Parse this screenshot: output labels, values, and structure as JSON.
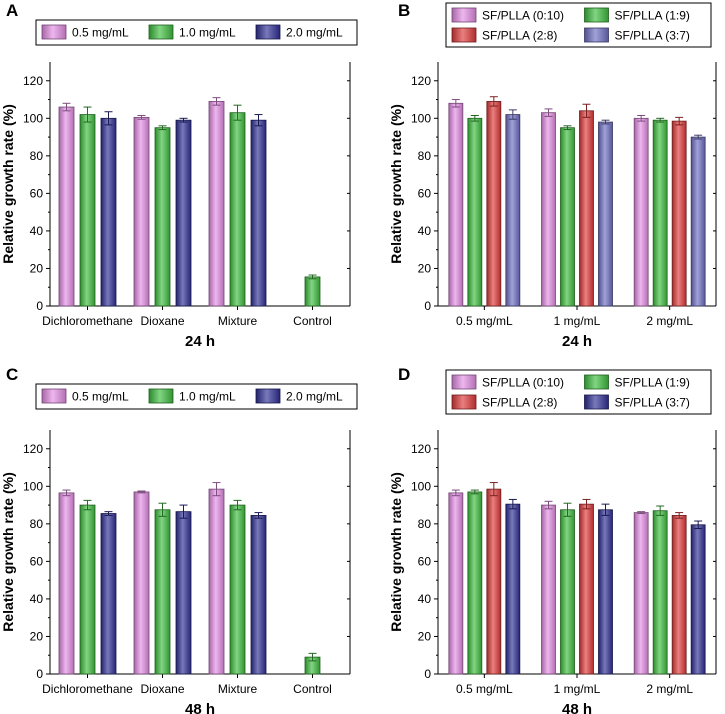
{
  "chart_data": [
    {
      "panel": "A",
      "type": "bar",
      "title": "",
      "xlabel": "24 h",
      "ylabel": "Relative growth rate (%)",
      "ylim": [
        0,
        130
      ],
      "yticks": [
        0,
        20,
        40,
        60,
        80,
        100,
        120
      ],
      "categories": [
        "Dichloromethane",
        "Dioxane",
        "Mixture",
        "Control"
      ],
      "legend_position": "top",
      "series": [
        {
          "name": "0.5 mg/mL",
          "color": "#e58ee6",
          "values": [
            106,
            100.5,
            109,
            null
          ],
          "errors": [
            2,
            1,
            2,
            null
          ]
        },
        {
          "name": "1.0 mg/mL",
          "color": "#3fbf3f",
          "values": [
            102,
            95,
            103,
            15.5
          ],
          "errors": [
            4,
            1,
            4,
            1
          ]
        },
        {
          "name": "2.0 mg/mL",
          "color": "#2f2f96",
          "values": [
            100,
            99,
            99,
            null
          ],
          "errors": [
            3.5,
            1,
            3,
            null
          ]
        }
      ]
    },
    {
      "panel": "B",
      "type": "bar",
      "title": "",
      "xlabel": "24 h",
      "ylabel": "Relative growth rate (%)",
      "ylim": [
        0,
        130
      ],
      "yticks": [
        0,
        20,
        40,
        60,
        80,
        100,
        120
      ],
      "categories": [
        "0.5 mg/mL",
        "1 mg/mL",
        "2 mg/mL"
      ],
      "legend_position": "top",
      "series": [
        {
          "name": "SF/PLLA (0:10)",
          "color": "#e58ee6",
          "values": [
            108,
            103,
            100
          ],
          "errors": [
            2,
            2,
            1.5
          ]
        },
        {
          "name": "SF/PLLA (1:9)",
          "color": "#3fbf3f",
          "values": [
            100,
            95,
            99
          ],
          "errors": [
            1.5,
            1,
            1
          ]
        },
        {
          "name": "SF/PLLA (2:8)",
          "color": "#e03a3a",
          "values": [
            109,
            104,
            98.5
          ],
          "errors": [
            2.5,
            3.5,
            2
          ]
        },
        {
          "name": "SF/PLLA (3:7)",
          "color": "#6f6fc4",
          "values": [
            102,
            98,
            90
          ],
          "errors": [
            2.5,
            1,
            1
          ]
        }
      ]
    },
    {
      "panel": "C",
      "type": "bar",
      "title": "",
      "xlabel": "48 h",
      "ylabel": "Relative growth rate (%)",
      "ylim": [
        0,
        130
      ],
      "yticks": [
        0,
        20,
        40,
        60,
        80,
        100,
        120
      ],
      "categories": [
        "Dichloromethane",
        "Dioxane",
        "Mixture",
        "Control"
      ],
      "legend_position": "top",
      "series": [
        {
          "name": "0.5 mg/mL",
          "color": "#e58ee6",
          "values": [
            96.5,
            97,
            98.5,
            null
          ],
          "errors": [
            1.5,
            0.5,
            3.5,
            null
          ]
        },
        {
          "name": "1.0 mg/mL",
          "color": "#3fbf3f",
          "values": [
            90,
            87.5,
            90,
            9
          ],
          "errors": [
            2.5,
            3.5,
            2.5,
            2
          ]
        },
        {
          "name": "2.0 mg/mL",
          "color": "#2f2f96",
          "values": [
            85.5,
            86.5,
            84.5,
            null
          ],
          "errors": [
            1,
            3.5,
            1.5,
            null
          ]
        }
      ]
    },
    {
      "panel": "D",
      "type": "bar",
      "title": "",
      "xlabel": "48 h",
      "ylabel": "Relative growth rate (%)",
      "ylim": [
        0,
        130
      ],
      "yticks": [
        0,
        20,
        40,
        60,
        80,
        100,
        120
      ],
      "categories": [
        "0.5 mg/mL",
        "1 mg/mL",
        "2 mg/mL"
      ],
      "legend_position": "top",
      "series": [
        {
          "name": "SF/PLLA (0:10)",
          "color": "#e58ee6",
          "values": [
            96.5,
            90,
            86
          ],
          "errors": [
            1.5,
            2,
            0.5
          ]
        },
        {
          "name": "SF/PLLA (1:9)",
          "color": "#3fbf3f",
          "values": [
            97,
            87.5,
            87
          ],
          "errors": [
            1,
            3.5,
            2.5
          ]
        },
        {
          "name": "SF/PLLA (2:8)",
          "color": "#e03a3a",
          "values": [
            98.5,
            90.5,
            84.5
          ],
          "errors": [
            3.5,
            2.5,
            1.5
          ]
        },
        {
          "name": "SF/PLLA (3:7)",
          "color": "#2f2f96",
          "values": [
            90.5,
            87.5,
            79.5
          ],
          "errors": [
            2.5,
            3,
            2
          ]
        }
      ]
    }
  ]
}
